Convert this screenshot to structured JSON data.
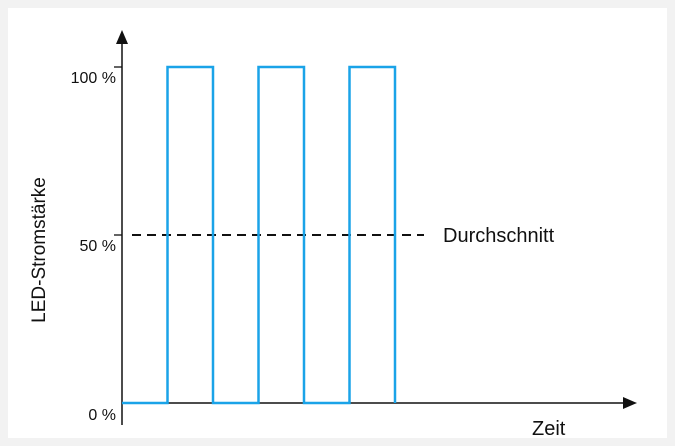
{
  "chart_data": {
    "type": "line",
    "title": "",
    "xlabel": "Zeit",
    "ylabel": "LED-Stromstärke",
    "ylim": [
      0,
      100
    ],
    "yticks": [
      {
        "value": 0,
        "label": "0 %"
      },
      {
        "value": 50,
        "label": "50 %"
      },
      {
        "value": 100,
        "label": "100 %"
      }
    ],
    "series": [
      {
        "x": [
          0,
          1,
          1,
          2,
          2,
          3,
          3,
          4,
          4,
          5,
          5,
          6,
          6
        ],
        "values": [
          0,
          0,
          100,
          100,
          0,
          0,
          100,
          100,
          0,
          0,
          100,
          100,
          0
        ]
      }
    ],
    "reference_line": {
      "value": 50,
      "label": "Durchschnitt",
      "style": "dashed"
    },
    "grid": false,
    "colors": {
      "signal": "#1aa3e8",
      "axis": "#111111",
      "reference": "#111111"
    }
  }
}
